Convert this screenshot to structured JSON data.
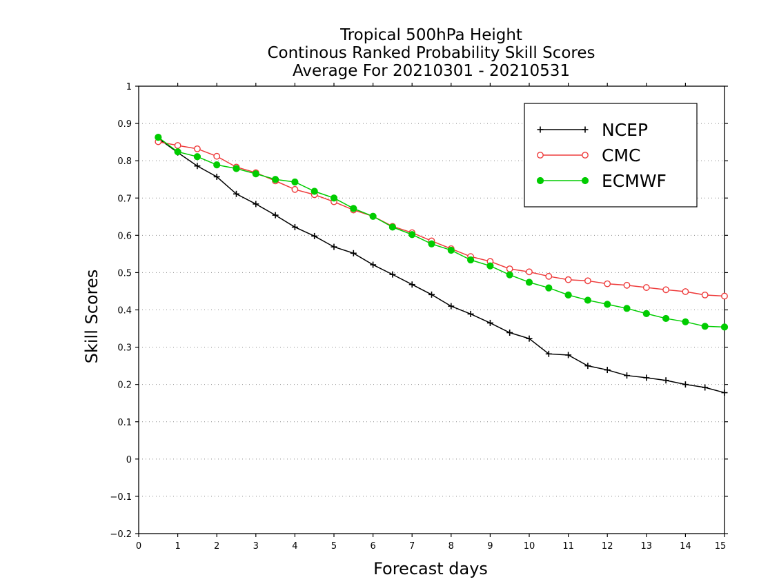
{
  "chart_data": {
    "type": "line",
    "title": [
      "Tropical 500hPa Height",
      "Continous Ranked Probability Skill Scores",
      "Average For 20210301 - 20210531"
    ],
    "xlabel": "Forecast days",
    "ylabel": "Skill Scores",
    "xlim": [
      0,
      15
    ],
    "ylim": [
      -0.2,
      1
    ],
    "xticks": [
      0,
      1,
      2,
      3,
      4,
      5,
      6,
      7,
      8,
      9,
      10,
      11,
      12,
      13,
      14,
      15
    ],
    "yticks": [
      -0.2,
      -0.1,
      0,
      0.1,
      0.2,
      0.3,
      0.4,
      0.5,
      0.6,
      0.7,
      0.8,
      0.9,
      1
    ],
    "ytick_labels": [
      "−0.2",
      "−0.1",
      "0",
      "0.1",
      "0.2",
      "0.3",
      "0.4",
      "0.5",
      "0.6",
      "0.7",
      "0.8",
      "0.9",
      "1"
    ],
    "grid": "horizontal dotted",
    "legend_position": "top-right",
    "x": [
      0.5,
      1,
      1.5,
      2,
      2.5,
      3,
      3.5,
      4,
      4.5,
      5,
      5.5,
      6,
      6.5,
      7,
      7.5,
      8,
      8.5,
      9,
      9.5,
      10,
      10.5,
      11,
      11.5,
      12,
      12.5,
      13,
      13.5,
      14,
      14.5,
      15
    ],
    "series": [
      {
        "name": "NCEP",
        "color": "#000000",
        "marker": "plus",
        "values": [
          0.86,
          0.822,
          0.786,
          0.757,
          0.711,
          0.684,
          0.654,
          0.622,
          0.598,
          0.569,
          0.552,
          0.521,
          0.495,
          0.468,
          0.441,
          0.41,
          0.389,
          0.365,
          0.339,
          0.323,
          0.282,
          0.279,
          0.25,
          0.239,
          0.224,
          0.218,
          0.211,
          0.2,
          0.192,
          0.178
        ]
      },
      {
        "name": "CMC",
        "color": "#ee3b3b",
        "marker": "open-circle",
        "values": [
          0.851,
          0.841,
          0.832,
          0.812,
          0.783,
          0.768,
          0.746,
          0.723,
          0.709,
          0.69,
          0.668,
          0.651,
          0.624,
          0.607,
          0.585,
          0.564,
          0.543,
          0.53,
          0.51,
          0.502,
          0.49,
          0.481,
          0.478,
          0.47,
          0.466,
          0.46,
          0.454,
          0.449,
          0.44,
          0.437
        ]
      },
      {
        "name": "ECMWF",
        "color": "#00cc00",
        "marker": "filled-circle",
        "values": [
          0.863,
          0.824,
          0.811,
          0.789,
          0.779,
          0.765,
          0.75,
          0.743,
          0.718,
          0.7,
          0.672,
          0.651,
          0.622,
          0.602,
          0.577,
          0.56,
          0.534,
          0.518,
          0.494,
          0.474,
          0.459,
          0.44,
          0.426,
          0.415,
          0.404,
          0.39,
          0.377,
          0.368,
          0.356,
          0.354
        ]
      }
    ]
  }
}
